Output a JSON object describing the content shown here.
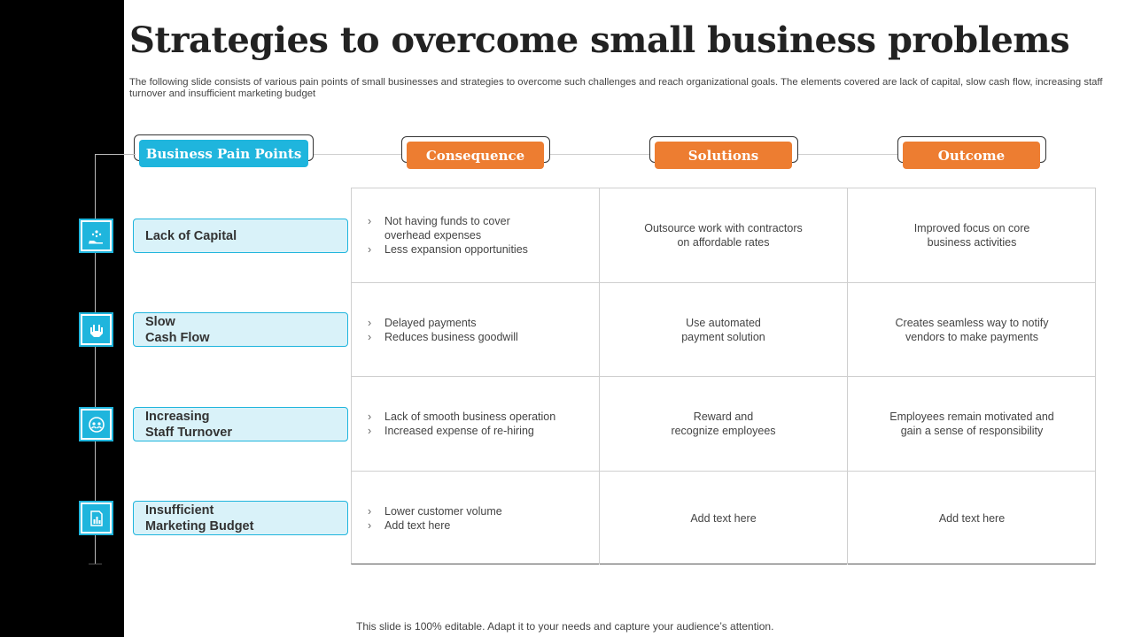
{
  "title": "Strategies to overcome small business problems",
  "subtitle": "The following slide consists of various pain points of small businesses and strategies to overcome such challenges and reach organizational goals. The elements covered are lack of capital, slow cash flow, increasing staff turnover and insufficient marketing budget",
  "headers": {
    "pain_points": "Business Pain Points",
    "consequence": "Consequence",
    "solutions": "Solutions",
    "outcome": "Outcome"
  },
  "rows": [
    {
      "icon": "money-hand-icon",
      "pain_point": "Lack of Capital",
      "consequences": [
        "Not having funds to cover\noverhead  expenses",
        "Less expansion opportunities"
      ],
      "solution": "Outsource work with contractors\non affordable  rates",
      "outcome": "Improved  focus on core\nbusiness activities"
    },
    {
      "icon": "dollar-hand-icon",
      "pain_point": "Slow\nCash Flow",
      "consequences": [
        "Delayed payments",
        "Reduces business goodwill"
      ],
      "solution": "Use automated\npayment solution",
      "outcome": "Creates seamless way to notify\nvendors  to make payments"
    },
    {
      "icon": "team-cycle-icon",
      "pain_point": "Increasing\nStaff Turnover",
      "consequences": [
        "Lack of smooth business operation",
        "Increased  expense of re-hiring"
      ],
      "solution": "Reward  and\nrecognize employees",
      "outcome": "Employees remain motivated and\ngain  a sense of responsibility"
    },
    {
      "icon": "chart-report-icon",
      "pain_point": "Insufficient\nMarketing Budget",
      "consequences": [
        "Lower  customer volume",
        "Add text here"
      ],
      "solution": "Add text here",
      "outcome": "Add text here"
    }
  ],
  "bullet_glyph": "›",
  "footer": "This slide is 100% editable. Adapt it to your needs and capture your audience’s attention.",
  "colors": {
    "accent_blue": "#1fb5dd",
    "accent_orange": "#ed7d31",
    "light_blue": "#d9f2f9",
    "side_bar": "#000000"
  }
}
